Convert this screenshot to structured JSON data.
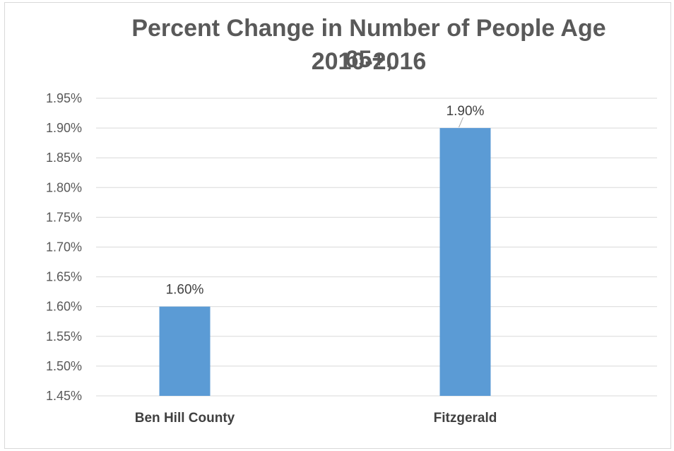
{
  "chart_data": {
    "type": "bar",
    "title": "Percent Change in Number of People Age 65+, 2010-2016",
    "title_lines": [
      "Percent Change in Number of People Age 65+,",
      "2010-2016"
    ],
    "categories": [
      "Ben Hill County",
      "Fitzgerald"
    ],
    "values": [
      1.6,
      1.9
    ],
    "data_labels": [
      "1.60%",
      "1.90%"
    ],
    "unit": "%",
    "xlabel": "",
    "ylabel": "",
    "ylim": [
      1.45,
      1.95
    ],
    "y_ticks": [
      1.45,
      1.5,
      1.55,
      1.6,
      1.65,
      1.7,
      1.75,
      1.8,
      1.85,
      1.9,
      1.95
    ],
    "y_tick_labels": [
      "1.45%",
      "1.50%",
      "1.55%",
      "1.60%",
      "1.65%",
      "1.70%",
      "1.75%",
      "1.80%",
      "1.85%",
      "1.90%",
      "1.95%"
    ],
    "grid": true,
    "legend": "none",
    "colors": {
      "bar": "#5b9bd5",
      "grid": "#d9d9d9",
      "text": "#595959"
    }
  }
}
